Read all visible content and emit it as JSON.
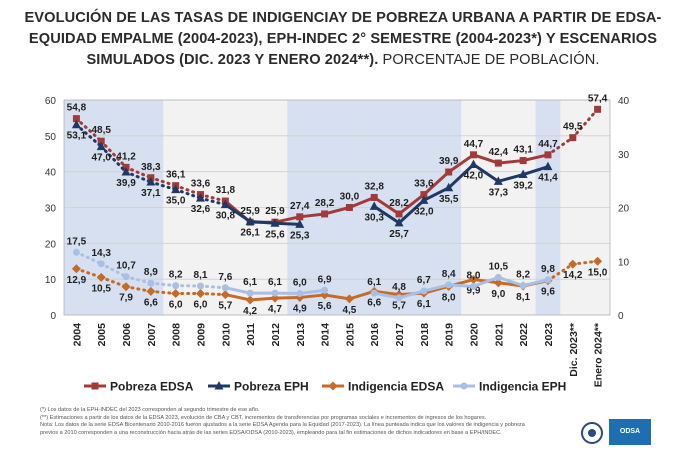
{
  "title": {
    "bold": "EVOLUCIÓN DE LAS TASAS DE INDIGENCIAY DE POBREZA URBANA A PARTIR DE EDSA-EQUIDAD EMPALME (2004-2023), EPH-INDEC 2°  SEMESTRE (2004-2023*) Y ESCENARIOS SIMULADOS (DIC. 2023 Y ENERO 2024**).",
    "normal": " PORCENTAJE DE POBLACIÓN."
  },
  "footnotes": [
    "(*) Los datos de la EPH-INDEC del 2023 corresponden al segundo trimestre de ese año.",
    "(**) Estimaciones a partir de los datos de la EDSA 2023, evolución de CBA y CBT, incrementos de transferencias por programas sociales e incrementos de ingresos de los hogares.",
    "Nota: Los datos de la serie EDSA Bicentenario 2010-2016 fueron ajustados a la serie EDSA Agenda para la Equidad (2017-2023). La línea punteada indica que los valores de indigencia y pobreza",
    "previos a 2010 corresponden a una reconstrucción hacia atrás de las series EDSA/ODSA (2010-2023), empleando para tal fin estimaciones de dichos indicadores en base a EPH/INDEC."
  ],
  "logo": {
    "text": "ODSA"
  },
  "chart_data": {
    "type": "line",
    "categories": [
      "2004",
      "2005",
      "2006",
      "2007",
      "2008",
      "2009",
      "2010",
      "2011",
      "2012",
      "2013",
      "2014",
      "2015",
      "2016",
      "2017",
      "2018",
      "2019",
      "2020",
      "2021",
      "2022",
      "2023",
      "Dic. 2023**",
      "Enero 2024**"
    ],
    "y_left": {
      "ticks": [
        "0",
        "10",
        "20",
        "30",
        "40",
        "50",
        "60"
      ],
      "lim": [
        0,
        60
      ]
    },
    "y_right": {
      "ticks": [
        "0",
        "10",
        "20",
        "30",
        "40"
      ],
      "lim": [
        0,
        40
      ]
    },
    "shaded_bands": [
      [
        "2004",
        "2007"
      ],
      [
        "2013",
        "2015"
      ],
      [
        "2016",
        "2019"
      ],
      [
        "2023",
        "2023"
      ]
    ],
    "series": [
      {
        "name": "Pobreza EDSA",
        "color": "#a33a3a",
        "marker": "square",
        "values": [
          54.8,
          48.5,
          41.2,
          38.3,
          36.1,
          33.6,
          31.8,
          25.9,
          25.9,
          27.4,
          28.2,
          30.0,
          32.8,
          28.2,
          33.6,
          39.9,
          44.7,
          42.4,
          43.1,
          44.7,
          49.5,
          57.4
        ],
        "labels": [
          "54,8",
          "48,5",
          "41,2",
          "38,3",
          "36,1",
          "33,6",
          "31,8",
          "25,9",
          "25,9",
          "27,4",
          "28,2",
          "30,0",
          "32,8",
          "28,2",
          "33,6",
          "39,9",
          "44,7",
          "42,4",
          "43,1",
          "44,7",
          "49,5",
          "57,4"
        ]
      },
      {
        "name": "Pobreza EPH",
        "color": "#1f3864",
        "marker": "triangle",
        "values": [
          53.1,
          47.0,
          39.9,
          37.1,
          35.0,
          32.6,
          30.8,
          26.1,
          25.6,
          25.3,
          null,
          null,
          30.3,
          25.7,
          32.0,
          35.5,
          42.0,
          37.3,
          39.2,
          41.4,
          null,
          null
        ],
        "labels": [
          "53,1",
          "47,0",
          "39,9",
          "37,1",
          "35,0",
          "32,6",
          "30,8",
          "26,1",
          "25,6",
          "25,3",
          "",
          "",
          "30,3",
          "25,7",
          "32,0",
          "35,5",
          "42,0",
          "37,3",
          "39,2",
          "41,4",
          "",
          ""
        ]
      },
      {
        "name": "Indigencia EDSA",
        "color": "#c56a28",
        "marker": "diamond",
        "values": [
          12.9,
          10.5,
          7.9,
          6.6,
          6.0,
          6.0,
          5.7,
          4.2,
          4.7,
          4.9,
          5.6,
          4.5,
          6.6,
          5.7,
          6.1,
          8.0,
          9.9,
          9.0,
          8.1,
          9.6,
          14.2,
          15.0
        ],
        "labels": [
          "12,9",
          "10,5",
          "7,9",
          "6,6",
          "6,0",
          "6,0",
          "5,7",
          "4,2",
          "4,7",
          "4,9",
          "5,6",
          "4,5",
          "6,6",
          "5,7",
          "6,1",
          "8,0",
          "9,9",
          "9,0",
          "8,1",
          "9,6",
          "14,2",
          "15,0"
        ]
      },
      {
        "name": "Indigencia EPH",
        "color": "#a9bfe4",
        "marker": "circle",
        "values": [
          17.5,
          14.3,
          10.7,
          8.9,
          8.2,
          8.1,
          7.6,
          6.1,
          6.1,
          6.0,
          6.9,
          null,
          6.1,
          4.8,
          6.7,
          8.4,
          8.0,
          10.5,
          8.2,
          9.8,
          null,
          null
        ],
        "labels": [
          "17,5",
          "14,3",
          "10,7",
          "8,9",
          "8,2",
          "8,1",
          "7,6",
          "6,1",
          "6,1",
          "6,0",
          "6,9",
          "",
          "6,1",
          "4,8",
          "6,7",
          "8,4",
          "8,0",
          "10,5",
          "8,2",
          "9,8",
          "",
          ""
        ]
      }
    ]
  }
}
